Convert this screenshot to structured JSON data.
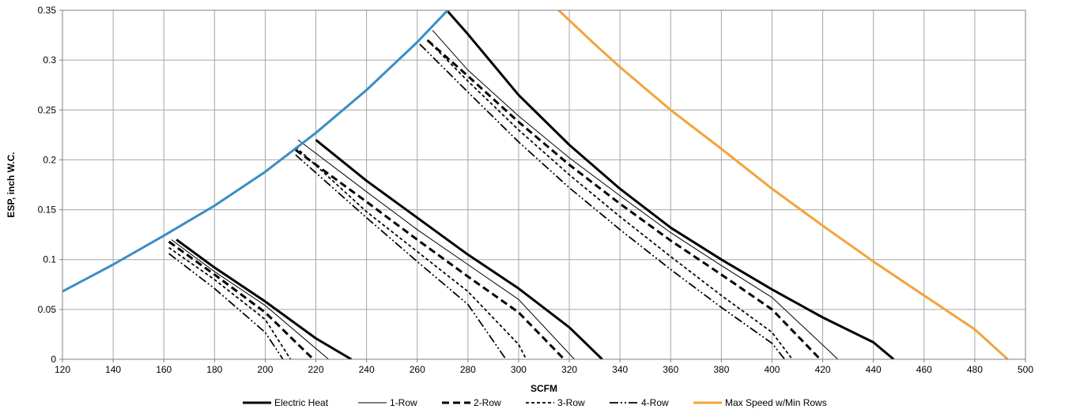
{
  "chart_data": {
    "type": "line",
    "xlabel": "SCFM",
    "ylabel": "ESP, inch W.C.",
    "xlim": [
      120,
      500
    ],
    "ylim": [
      0,
      0.35
    ],
    "x_ticks": [
      120,
      140,
      160,
      180,
      200,
      220,
      240,
      260,
      280,
      300,
      320,
      340,
      360,
      380,
      400,
      420,
      440,
      460,
      480,
      500
    ],
    "y_ticks": [
      0,
      0.05,
      0.1,
      0.15,
      0.2,
      0.25,
      0.3,
      0.35
    ],
    "x_tick_labels": [
      "120",
      "140",
      "160",
      "180",
      "200",
      "220",
      "240",
      "260",
      "280",
      "300",
      "320",
      "340",
      "360",
      "380",
      "400",
      "420",
      "440",
      "460",
      "480",
      "500"
    ],
    "y_tick_labels": [
      "0",
      "0.05",
      "0.1",
      "0.15",
      "0.2",
      "0.25",
      "0.3",
      "0.35"
    ],
    "grid": true,
    "legend_position": "bottom",
    "series": [
      {
        "name": "Electric Heat",
        "color": "#000000",
        "dash": "solid",
        "weight": "thick",
        "segments": [
          [
            [
              165,
              0.12
            ],
            [
              180,
              0.092
            ],
            [
              200,
              0.058
            ],
            [
              220,
              0.021
            ],
            [
              234,
              0.0
            ]
          ],
          [
            [
              220,
              0.22
            ],
            [
              240,
              0.179
            ],
            [
              260,
              0.142
            ],
            [
              280,
              0.105
            ],
            [
              300,
              0.071
            ],
            [
              320,
              0.032
            ],
            [
              333,
              0.0
            ]
          ],
          [
            [
              272,
              0.349
            ],
            [
              280,
              0.326
            ],
            [
              300,
              0.265
            ],
            [
              320,
              0.215
            ],
            [
              340,
              0.171
            ],
            [
              360,
              0.132
            ],
            [
              380,
              0.1
            ],
            [
              400,
              0.07
            ],
            [
              420,
              0.042
            ],
            [
              440,
              0.017
            ],
            [
              448,
              0.0
            ]
          ]
        ]
      },
      {
        "name": "1-Row",
        "color": "#000000",
        "dash": "solid",
        "weight": "thin",
        "segments": [
          [
            [
              163,
              0.12
            ],
            [
              180,
              0.088
            ],
            [
              200,
              0.054
            ],
            [
              225,
              0.0
            ]
          ],
          [
            [
              213,
              0.22
            ],
            [
              240,
              0.168
            ],
            [
              260,
              0.13
            ],
            [
              280,
              0.095
            ],
            [
              300,
              0.06
            ],
            [
              322,
              0.0
            ]
          ],
          [
            [
              266,
              0.33
            ],
            [
              280,
              0.29
            ],
            [
              300,
              0.244
            ],
            [
              320,
              0.202
            ],
            [
              340,
              0.164
            ],
            [
              360,
              0.127
            ],
            [
              380,
              0.094
            ],
            [
              400,
              0.062
            ],
            [
              426,
              0.0
            ]
          ]
        ]
      },
      {
        "name": "2-Row",
        "color": "#000000",
        "dash": "dash",
        "weight": "thick",
        "segments": [
          [
            [
              162,
              0.118
            ],
            [
              180,
              0.085
            ],
            [
              200,
              0.047
            ],
            [
              219,
              0.0
            ]
          ],
          [
            [
              212,
              0.21
            ],
            [
              240,
              0.158
            ],
            [
              260,
              0.12
            ],
            [
              280,
              0.083
            ],
            [
              300,
              0.047
            ],
            [
              318,
              0.0
            ]
          ],
          [
            [
              264,
              0.32
            ],
            [
              280,
              0.284
            ],
            [
              300,
              0.238
            ],
            [
              320,
              0.195
            ],
            [
              340,
              0.156
            ],
            [
              360,
              0.119
            ],
            [
              380,
              0.085
            ],
            [
              400,
              0.05
            ],
            [
              419,
              0.0
            ]
          ]
        ]
      },
      {
        "name": "3-Row",
        "color": "#000000",
        "dash": "short",
        "weight": "medium",
        "segments": [
          [
            [
              162,
              0.112
            ],
            [
              180,
              0.08
            ],
            [
              200,
              0.04
            ],
            [
              210,
              0.0
            ]
          ],
          [
            [
              212,
              0.213
            ],
            [
              240,
              0.148
            ],
            [
              260,
              0.108
            ],
            [
              280,
              0.068
            ],
            [
              300,
              0.015
            ],
            [
              303,
              0.0
            ]
          ],
          [
            [
              264,
              0.32
            ],
            [
              280,
              0.279
            ],
            [
              300,
              0.23
            ],
            [
              320,
              0.185
            ],
            [
              340,
              0.143
            ],
            [
              360,
              0.103
            ],
            [
              380,
              0.064
            ],
            [
              400,
              0.027
            ],
            [
              408,
              0.0
            ]
          ]
        ]
      },
      {
        "name": "4-Row",
        "color": "#000000",
        "dash": "dashdotdot",
        "weight": "medium",
        "segments": [
          [
            [
              162,
              0.106
            ],
            [
              180,
              0.071
            ],
            [
              200,
              0.027
            ],
            [
              207,
              0.0
            ]
          ],
          [
            [
              212,
              0.205
            ],
            [
              240,
              0.142
            ],
            [
              260,
              0.098
            ],
            [
              280,
              0.055
            ],
            [
              295,
              0.0
            ]
          ],
          [
            [
              261,
              0.316
            ],
            [
              280,
              0.268
            ],
            [
              300,
              0.218
            ],
            [
              320,
              0.172
            ],
            [
              340,
              0.13
            ],
            [
              360,
              0.09
            ],
            [
              380,
              0.052
            ],
            [
              400,
              0.016
            ],
            [
              405,
              0.0
            ]
          ]
        ]
      },
      {
        "name": "Max Speed w/Min Rows",
        "color": "#f2a43a",
        "dash": "solid",
        "weight": "thick",
        "segments": [
          [
            [
              315,
              0.352
            ],
            [
              330,
              0.316
            ],
            [
              340,
              0.293
            ],
            [
              360,
              0.25
            ],
            [
              380,
              0.211
            ],
            [
              400,
              0.171
            ],
            [
              420,
              0.134
            ],
            [
              440,
              0.098
            ],
            [
              460,
              0.064
            ],
            [
              480,
              0.03
            ],
            [
              493,
              0.0
            ]
          ]
        ]
      },
      {
        "name": "",
        "color": "#3b8dc6",
        "dash": "solid",
        "weight": "thick",
        "segments": [
          [
            [
              120,
              0.068
            ],
            [
              140,
              0.095
            ],
            [
              160,
              0.124
            ],
            [
              180,
              0.154
            ],
            [
              200,
              0.188
            ],
            [
              220,
              0.227
            ],
            [
              240,
              0.27
            ],
            [
              260,
              0.318
            ],
            [
              272,
              0.35
            ]
          ]
        ]
      }
    ]
  }
}
